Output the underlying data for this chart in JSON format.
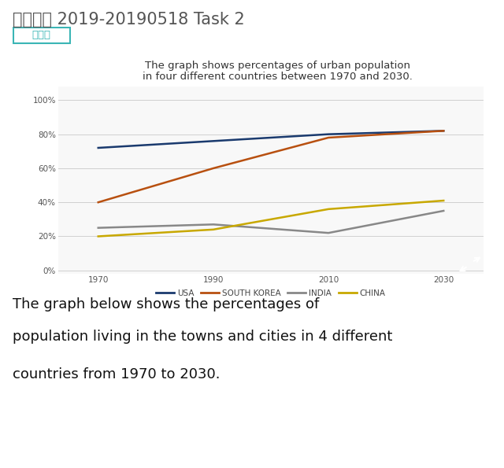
{
  "title_main": "写作真题 2019-20190518 Task 2",
  "tag_text": "线形图",
  "tag_color": "#3ab5b5",
  "chart_title_line1": "The graph shows percentages of urban population",
  "chart_title_line2": "in four different countries between 1970 and 2030.",
  "years": [
    1970,
    1990,
    2010,
    2030
  ],
  "series": {
    "USA": {
      "values": [
        72,
        76,
        80,
        82
      ],
      "color": "#1a3a6e",
      "linewidth": 1.8
    },
    "SOUTH KOREA": {
      "values": [
        40,
        60,
        78,
        82
      ],
      "color": "#b85010",
      "linewidth": 1.8
    },
    "INDIA": {
      "values": [
        25,
        27,
        22,
        35
      ],
      "color": "#888888",
      "linewidth": 1.8
    },
    "CHINA": {
      "values": [
        20,
        24,
        36,
        41
      ],
      "color": "#c8a800",
      "linewidth": 1.8
    }
  },
  "yticks": [
    0,
    20,
    40,
    60,
    80,
    100
  ],
  "ytick_labels": [
    "0%",
    "20%",
    "40%",
    "60%",
    "80%",
    "100%"
  ],
  "ylim": [
    -2,
    108
  ],
  "xlim": [
    1963,
    2037
  ],
  "bottom_text_line1": "The graph below shows the percentages of",
  "bottom_text_line2": "population living in the towns and cities in 4 different",
  "bottom_text_line3": "countries from 1970 to 2030.",
  "bg_color": "#ffffff",
  "chart_bg_color": "#f8f8f8",
  "grid_color": "#d0d0d0"
}
